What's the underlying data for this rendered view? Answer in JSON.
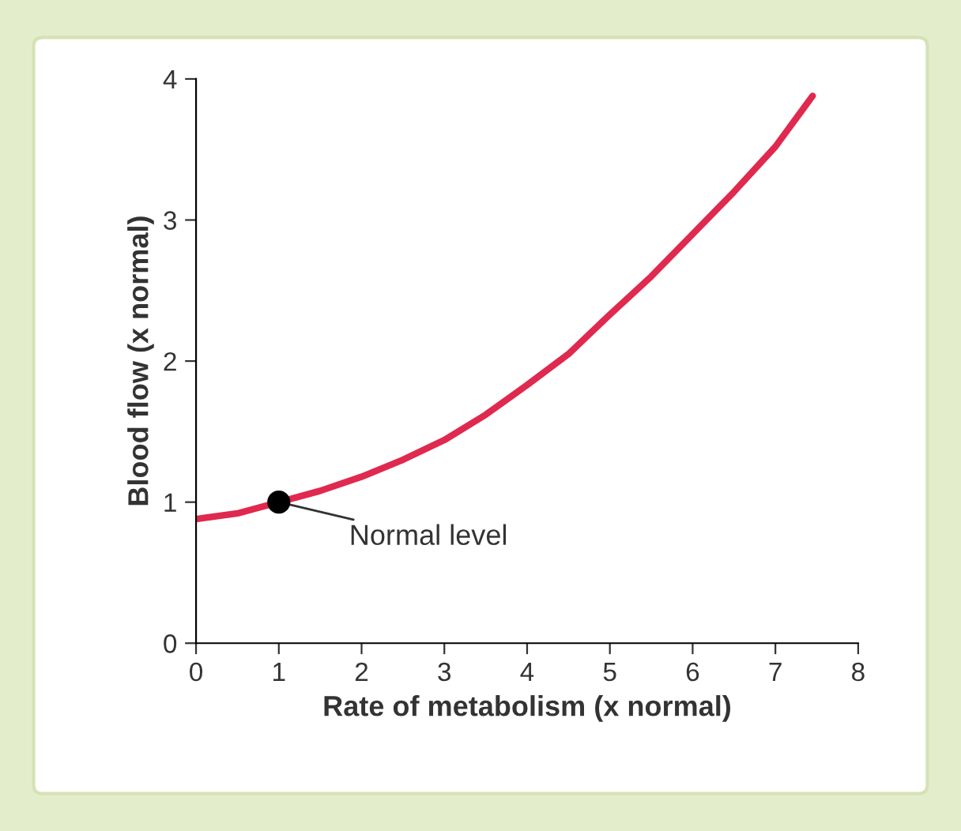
{
  "chart_data": {
    "type": "line",
    "xlabel": "Rate of metabolism (x normal)",
    "ylabel": "Blood flow (x normal)",
    "xlim": [
      0,
      8
    ],
    "ylim": [
      0,
      4
    ],
    "xticks": [
      0,
      1,
      2,
      3,
      4,
      5,
      6,
      7,
      8
    ],
    "yticks": [
      0,
      1,
      2,
      3,
      4
    ],
    "grid": false,
    "legend": false,
    "series": [
      {
        "color": "#e0294f",
        "x": [
          0,
          0.5,
          1,
          1.5,
          2,
          2.5,
          3,
          3.5,
          4,
          4.5,
          5,
          5.5,
          6,
          6.5,
          7,
          7.45
        ],
        "values": [
          0.88,
          0.92,
          1.0,
          1.08,
          1.18,
          1.3,
          1.44,
          1.62,
          1.83,
          2.05,
          2.33,
          2.6,
          2.9,
          3.2,
          3.52,
          3.88
        ]
      },
      {
        "type": "scatter",
        "color": "#000000",
        "x": [
          1
        ],
        "values": [
          1
        ],
        "marker": "circle"
      }
    ],
    "annotations": [
      {
        "text": "Normal level",
        "x": 1,
        "y": 1
      }
    ]
  }
}
